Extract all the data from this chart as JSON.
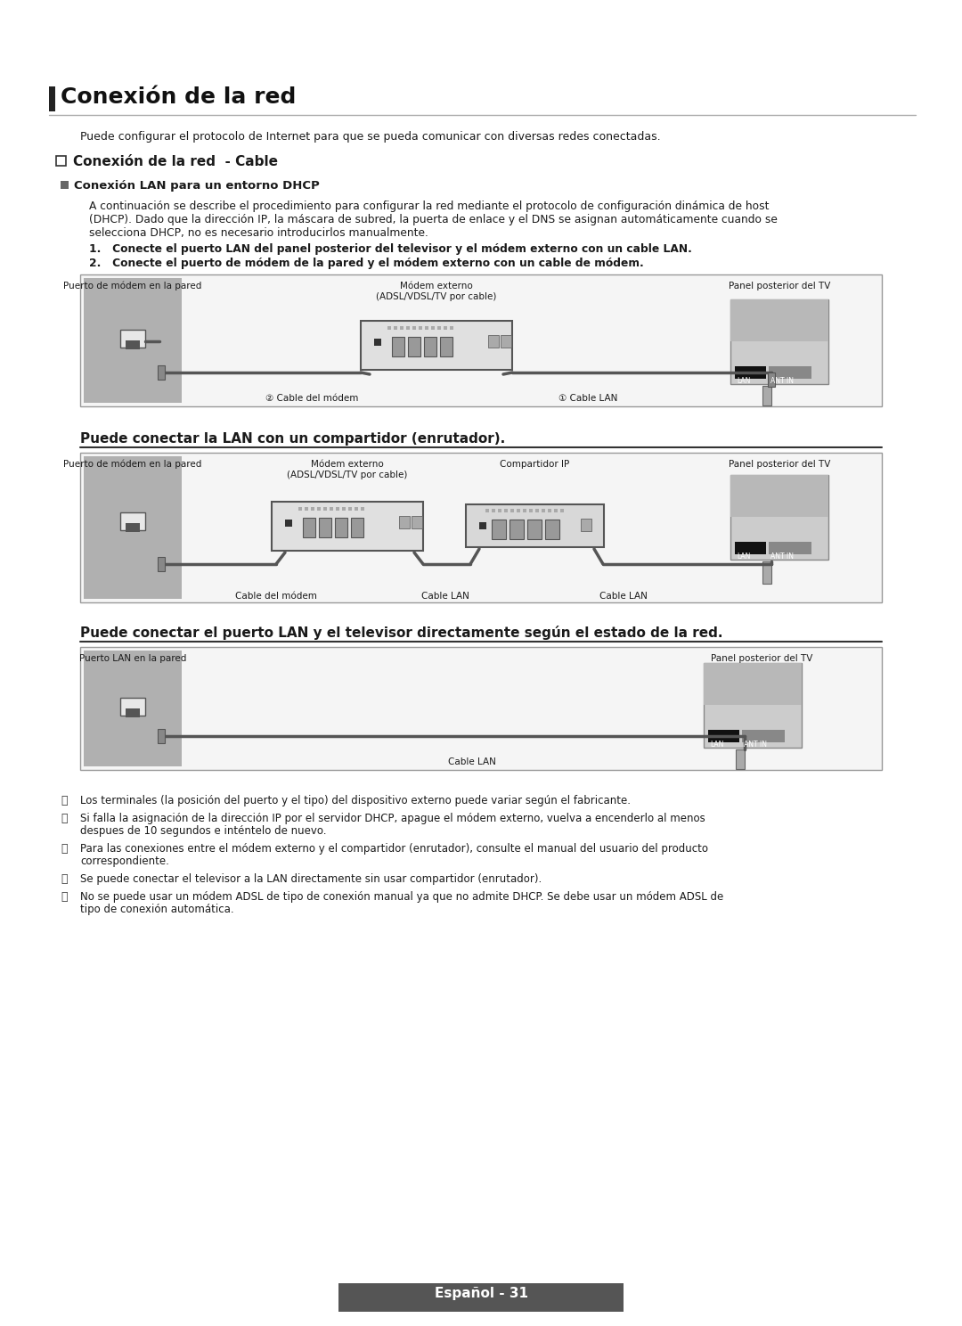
{
  "page_bg": "#ffffff",
  "title": "Conexión de la red",
  "intro": "Puede configurar el protocolo de Internet para que se pueda comunicar con diversas redes conectadas.",
  "sec1_head": "Conexión de la red  - Cable",
  "subsec1_head": "Conexión LAN para un entorno DHCP",
  "body_lines": [
    "A continuación se describe el procedimiento para configurar la red mediante el protocolo de configuración dinámica de host",
    "(DHCP). Dado que la dirección IP, la máscara de subred, la puerta de enlace y el DNS se asignan automáticamente cuando se",
    "selecciona DHCP, no es necesario introducirlos manualmente."
  ],
  "list1": "1.   Conecte el puerto LAN del panel posterior del televisor y el módem externo con un cable LAN.",
  "list2": "2.   Conecte el puerto de módem de la pared y el módem externo con un cable de módem.",
  "d1_lbl_left": "Puerto de módem en la pared",
  "d1_lbl_center": "Módem externo\n(ADSL/VDSL/TV por cable)",
  "d1_lbl_right": "Panel posterior del TV",
  "d1_cable1": "② Cable del módem",
  "d1_cable2": "① Cable LAN",
  "sec2_head": "Puede conectar la LAN con un compartidor (enrutador).",
  "d2_lbl_left": "Puerto de módem en la pared",
  "d2_lbl_center": "Módem externo\n(ADSL/VDSL/TV por cable)",
  "d2_lbl_router": "Compartidor IP",
  "d2_lbl_right": "Panel posterior del TV",
  "d2_cable1": "Cable del módem",
  "d2_cable2": "Cable LAN",
  "d2_cable3": "Cable LAN",
  "sec3_head": "Puede conectar el puerto LAN y el televisor directamente según el estado de la red.",
  "d3_lbl_left": "Puerto LAN en la pared",
  "d3_lbl_right": "Panel posterior del TV",
  "d3_cable": "Cable LAN",
  "notes": [
    "Los terminales (la posición del puerto y el tipo) del dispositivo externo puede variar según el fabricante.",
    "Si falla la asignación de la dirección IP por el servidor DHCP, apague el módem externo, vuelva a encenderlo al menos\ndespues de 10 segundos e inténtelo de nuevo.",
    "Para las conexiones entre el módem externo y el compartidor (enrutador), consulte el manual del usuario del producto\ncorrespondiente.",
    "Se puede conectar el televisor a la LAN directamente sin usar compartidor (enrutador).",
    "No se puede usar un módem ADSL de tipo de conexión manual ya que no admite DHCP. Se debe usar un módem ADSL de\ntipo de conexión automática."
  ],
  "footer": "Español - 31"
}
